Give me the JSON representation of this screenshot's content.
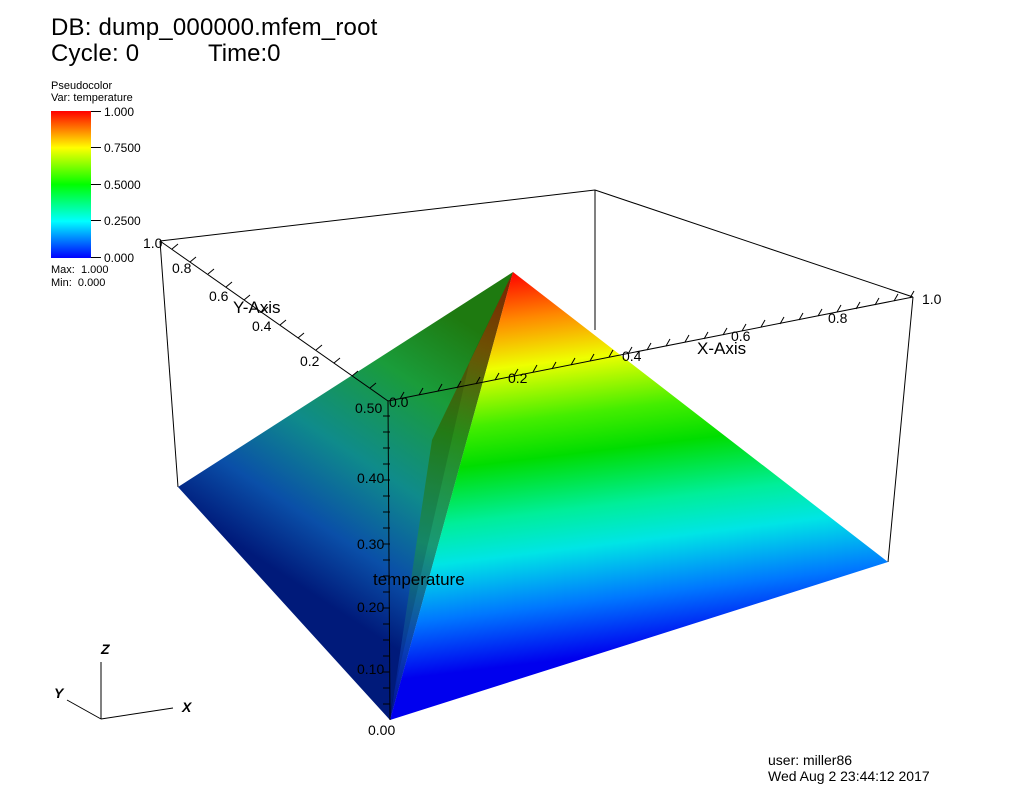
{
  "header": {
    "db": "DB: dump_000000.mfem_root",
    "cycle": "Cycle: 0",
    "time": "Time:0"
  },
  "legend": {
    "title": "Pseudocolor",
    "var": "Var: temperature",
    "ticks": [
      "1.000",
      "0.7500",
      "0.5000",
      "0.2500",
      "0.000"
    ],
    "max": "Max:  1.000",
    "min": "Min:  0.000",
    "colors": [
      "#ff0000",
      "#ffff00",
      "#00ff00",
      "#00ffff",
      "#0000ff"
    ]
  },
  "axes": {
    "x_title": "X-Axis",
    "y_title": "Y-Axis",
    "z_title": "temperature",
    "x_ticks": [
      "0.0",
      "0.2",
      "0.4",
      "0.6",
      "0.8",
      "1.0"
    ],
    "y_ticks": [
      "0.2",
      "0.4",
      "0.6",
      "0.8",
      "1.0"
    ],
    "z_ticks": [
      "0.00",
      "0.10",
      "0.20",
      "0.30",
      "0.40",
      "0.50"
    ],
    "triad": {
      "x": "X",
      "y": "Y",
      "z": "Z"
    }
  },
  "footer": {
    "user": "user: miller86",
    "date": "Wed Aug  2 23:44:12 2017"
  }
}
